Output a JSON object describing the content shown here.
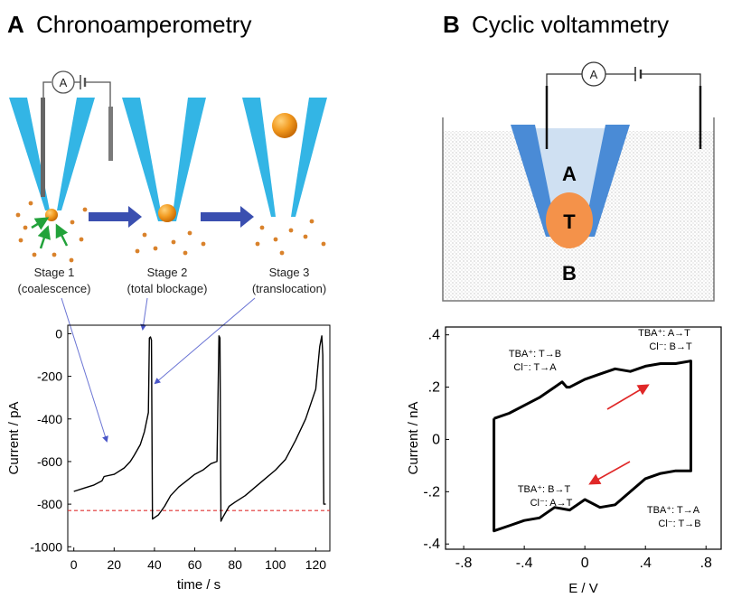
{
  "panelA": {
    "letter": "A",
    "title": "Chronoamperometry",
    "ammeter": "A",
    "stages": [
      {
        "name": "Stage 1",
        "desc": "(coalescence)"
      },
      {
        "name": "Stage 2",
        "desc": "(total blockage)"
      },
      {
        "name": "Stage 3",
        "desc": "(translocation)"
      }
    ]
  },
  "panelB": {
    "letter": "B",
    "title": "Cyclic voltammetry",
    "ammeter": "A",
    "phase_inner": "A",
    "droplet": "T",
    "phase_outer": "B",
    "annotations": [
      {
        "l1": "TBA⁺: T→B",
        "l2": "Cl⁻: T→A"
      },
      {
        "l1": "TBA⁺: A→T",
        "l2": "Cl⁻: B→T"
      },
      {
        "l1": "TBA⁺: B→T",
        "l2": "Cl⁻: A→T"
      },
      {
        "l1": "TBA⁺: T→A",
        "l2": "Cl⁻: T→B"
      }
    ]
  },
  "chart_data": [
    {
      "type": "line",
      "xlabel": "time / s",
      "ylabel": "Current / pA",
      "xlim": [
        -3,
        127
      ],
      "ylim": [
        -1020,
        40
      ],
      "xticks": [
        0,
        20,
        40,
        60,
        80,
        100,
        120
      ],
      "yticks": [
        0,
        -200,
        -400,
        -600,
        -800,
        -1000
      ],
      "reference_line": {
        "y": -830,
        "style": "dashed",
        "color": "#e03030"
      },
      "series": [
        {
          "x": [
            0,
            5,
            10,
            14,
            15,
            20,
            25,
            28,
            30,
            33,
            35,
            37,
            37.5,
            38,
            38.5,
            39,
            42,
            45,
            48,
            52,
            56,
            60,
            64,
            68,
            71,
            72,
            72.5,
            73,
            74,
            77,
            80,
            85,
            90,
            95,
            100,
            105,
            110,
            115,
            120,
            122,
            123,
            123.5,
            124,
            125
          ],
          "y": [
            -740,
            -725,
            -710,
            -690,
            -670,
            -660,
            -630,
            -600,
            -570,
            -520,
            -460,
            -370,
            -20,
            -15,
            -30,
            -870,
            -850,
            -810,
            -760,
            -720,
            -690,
            -660,
            -640,
            -610,
            -600,
            -10,
            -20,
            -880,
            -860,
            -810,
            -790,
            -760,
            -720,
            -680,
            -640,
            -590,
            -500,
            -400,
            -260,
            -60,
            -10,
            -100,
            -800,
            -800
          ]
        }
      ]
    },
    {
      "type": "line",
      "xlabel": "E / V",
      "ylabel": "Current / nA",
      "xlim": [
        -0.92,
        0.9
      ],
      "ylim": [
        -0.42,
        0.43
      ],
      "xticks": [
        -0.8,
        -0.4,
        0,
        0.4,
        0.8
      ],
      "yticks": [
        0.4,
        0.2,
        0,
        -0.2,
        -0.4
      ],
      "series": [
        {
          "x": [
            -0.6,
            -0.5,
            -0.4,
            -0.3,
            -0.2,
            -0.15,
            -0.12,
            -0.1,
            0,
            0.1,
            0.2,
            0.3,
            0.4,
            0.5,
            0.6,
            0.7,
            0.7,
            0.6,
            0.5,
            0.4,
            0.3,
            0.2,
            0.1,
            0,
            -0.1,
            -0.2,
            -0.3,
            -0.4,
            -0.5,
            -0.6,
            -0.6
          ],
          "y": [
            0.08,
            0.1,
            0.13,
            0.16,
            0.2,
            0.22,
            0.2,
            0.2,
            0.23,
            0.25,
            0.27,
            0.26,
            0.28,
            0.29,
            0.29,
            0.3,
            -0.12,
            -0.12,
            -0.13,
            -0.15,
            -0.2,
            -0.25,
            -0.26,
            -0.23,
            -0.27,
            -0.26,
            -0.3,
            -0.31,
            -0.33,
            -0.35,
            0.08
          ]
        }
      ]
    }
  ]
}
